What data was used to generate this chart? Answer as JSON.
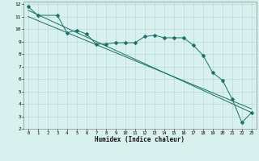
{
  "xlabel": "Humidex (Indice chaleur)",
  "bg_color": "#d8f0ee",
  "grid_color": "#b8d8d5",
  "line_color": "#1a7068",
  "xlim": [
    -0.5,
    23.5
  ],
  "ylim": [
    2,
    12.2
  ],
  "xticks": [
    0,
    1,
    2,
    3,
    4,
    5,
    6,
    7,
    8,
    9,
    10,
    11,
    12,
    13,
    14,
    15,
    16,
    17,
    18,
    19,
    20,
    21,
    22,
    23
  ],
  "yticks": [
    2,
    3,
    4,
    5,
    6,
    7,
    8,
    9,
    10,
    11,
    12
  ],
  "line1_x": [
    0,
    1,
    3,
    4,
    5,
    6,
    7,
    8,
    9,
    10,
    11,
    12,
    13,
    14,
    15,
    16,
    17,
    18,
    19,
    20,
    21,
    22,
    23
  ],
  "line1_y": [
    11.8,
    11.1,
    11.1,
    9.7,
    9.9,
    9.6,
    8.8,
    8.8,
    8.9,
    8.9,
    8.9,
    9.4,
    9.5,
    9.3,
    9.3,
    9.3,
    8.7,
    7.9,
    6.5,
    5.9,
    4.4,
    2.5,
    3.3
  ],
  "line2_x": [
    0,
    23
  ],
  "line2_y": [
    11.5,
    3.3
  ],
  "line3_x": [
    0,
    23
  ],
  "line3_y": [
    11.0,
    3.6
  ],
  "markersize": 2.5
}
